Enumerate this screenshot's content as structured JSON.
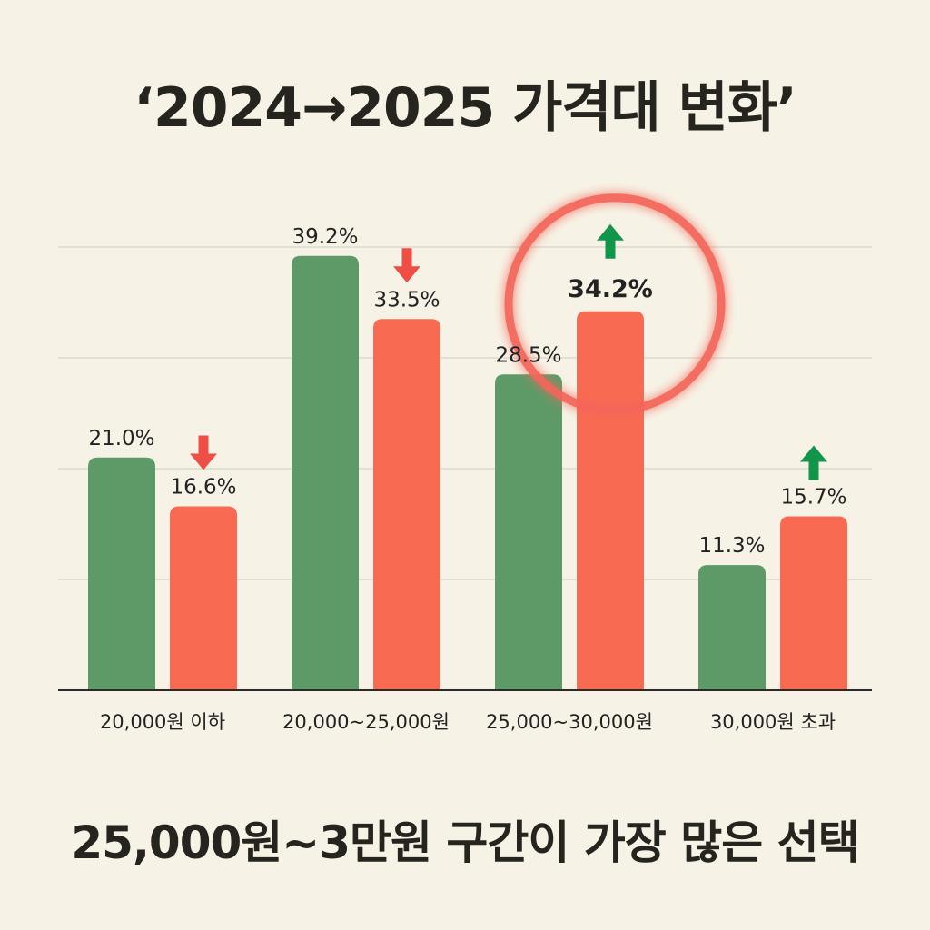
{
  "title": "‘2024→2025 가격대 변화’",
  "footer": "25,000원~3만원 구간이 가장 많은 선택",
  "colors": {
    "background": "#f6f3e6",
    "series_2024": "#5e9a68",
    "series_2025": "#f96a52",
    "up_arrow": "#11954a",
    "down_arrow": "#ee4e44",
    "highlight_ring": "#f4665a"
  },
  "chart_data": {
    "type": "bar",
    "categories": [
      "20,000원 이하",
      "20,000~25,000원",
      "25,000~30,000원",
      "30,000원 초과"
    ],
    "series": [
      {
        "values": [
          21.0,
          39.2,
          28.5,
          11.3
        ],
        "labels": [
          "21.0%",
          "39.2%",
          "28.5%",
          "11.3%"
        ]
      },
      {
        "values": [
          16.6,
          33.5,
          34.2,
          15.7
        ],
        "labels": [
          "16.6%",
          "33.5%",
          "34.2%",
          "15.7%"
        ]
      }
    ],
    "change_direction": [
      "down",
      "down",
      "up",
      "up"
    ],
    "highlighted_category": "25,000~30,000원",
    "title": "",
    "xlabel": "",
    "ylabel": "",
    "ylim": [
      0,
      40
    ],
    "grid": true,
    "legend": "none"
  }
}
